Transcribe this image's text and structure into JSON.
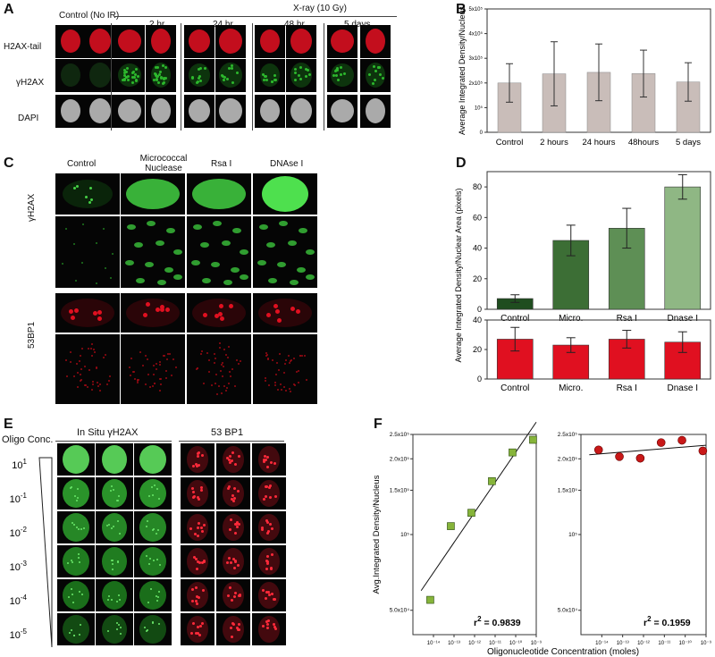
{
  "panels": {
    "A": "A",
    "B": "B",
    "C": "C",
    "D": "D",
    "E": "E",
    "F": "F"
  },
  "panelA": {
    "control_header": "Control (No IR)",
    "xray_header": "X-ray (10 Gy)",
    "time_headers": [
      "2 hr",
      "24 hr",
      "48 hr",
      "5 days"
    ],
    "row_labels": [
      "H2AX-tail",
      "γH2AX",
      "DAPI"
    ],
    "colors": {
      "h2ax_tail": "#d81020",
      "gamma_h2ax": "#2db82d",
      "dapi": "#c8c8c8"
    }
  },
  "panelC": {
    "col_headers": [
      "Control",
      "Micrococcal Nuclease",
      "Rsa I",
      "DNAse I"
    ],
    "row_labels": [
      "γH2AX",
      "53BP1"
    ]
  },
  "panelE": {
    "oligo_label": "Oligo Conc.",
    "col_headers": [
      "In Situ γH2AX",
      "53 BP1"
    ],
    "concentrations": [
      "10^1",
      "10^-1",
      "10^-2",
      "10^-3",
      "10^-4",
      "10^-5"
    ],
    "conc_base": "10",
    "conc_exp": [
      "1",
      "-1",
      "-2",
      "-3",
      "-4",
      "-5"
    ]
  },
  "chart_data": [
    {
      "id": "B",
      "type": "bar",
      "categories": [
        "Control",
        "2 hours",
        "24 hours",
        "48hours",
        "5 days"
      ],
      "values": [
        200000,
        237000,
        243000,
        238000,
        204000
      ],
      "errors": [
        78000,
        130000,
        115000,
        95000,
        78000
      ],
      "ylabel": "Average Integrated Density/Nucleus",
      "ylim": [
        0,
        500000
      ],
      "yticks": [
        "0",
        "10⁵",
        "2x10⁵",
        "3x10⁵",
        "4x10⁵",
        "5x10⁵"
      ],
      "bar_color": "#c9bdb9"
    },
    {
      "id": "D",
      "type": "bar",
      "categories": [
        "Control",
        "Micro.",
        "Rsa I",
        "Dnase I"
      ],
      "ylabel": "Average Integrated Density/Nuclear Area (pixels)",
      "series": [
        {
          "values": [
            7,
            45,
            53,
            80
          ],
          "errors": [
            2.5,
            10,
            13,
            8
          ],
          "colors": [
            "#1f4d1f",
            "#3c6e35",
            "#5e8f55",
            "#8fb784"
          ],
          "ylim": [
            0,
            90
          ],
          "yticks": [
            0,
            20,
            40,
            60,
            80
          ]
        },
        {
          "values": [
            27,
            23,
            27,
            25
          ],
          "errors": [
            8,
            5,
            6,
            7
          ],
          "colors": [
            "#e01020",
            "#e01020",
            "#e01020",
            "#e01020"
          ],
          "ylim": [
            0,
            40
          ],
          "yticks": [
            0,
            20,
            40
          ]
        }
      ]
    },
    {
      "id": "F-left",
      "type": "scatter",
      "x": [
        7e-15,
        7e-14,
        7e-13,
        7e-12,
        7e-11,
        7e-10
      ],
      "y": [
        55000,
        108000,
        122000,
        163000,
        212000,
        238000
      ],
      "ylabel": "Avg.Integrated Density/Nucleus",
      "xlabel": "Oligonucleotide Concentration (moles)",
      "xscale": "log",
      "yscale": "log",
      "xlim": [
        1e-15,
        1e-09
      ],
      "ylim": [
        40000,
        250000
      ],
      "yticks": [
        "5.0x10⁴",
        "10⁵",
        "1.5x10⁵",
        "2.0x10⁵",
        "2.5x10⁵"
      ],
      "xticks": [
        "10⁻¹⁴",
        "10⁻¹³",
        "10⁻¹²",
        "10⁻¹¹",
        "10⁻¹⁰",
        "10⁻⁹"
      ],
      "r2_label": "r",
      "r2_value": "= 0.9839",
      "marker_color": "#86b43a"
    },
    {
      "id": "F-right",
      "type": "scatter",
      "x": [
        7e-15,
        7e-14,
        7e-13,
        7e-12,
        7e-11,
        7e-10
      ],
      "y": [
        217000,
        204000,
        201000,
        232000,
        237000,
        215000
      ],
      "xscale": "log",
      "yscale": "log",
      "xlim": [
        1e-15,
        1e-09
      ],
      "ylim": [
        40000,
        250000
      ],
      "yticks": [
        "5.0x10⁴",
        "10⁵",
        "1.5x10⁵",
        "2.0x10⁵",
        "2.5x10⁵"
      ],
      "xticks": [
        "10⁻¹⁴",
        "10⁻¹³",
        "10⁻¹²",
        "10⁻¹¹",
        "10⁻¹⁰",
        "10⁻⁹"
      ],
      "r2_label": "r",
      "r2_value": "= 0.1959",
      "marker_color": "#c81818"
    }
  ]
}
